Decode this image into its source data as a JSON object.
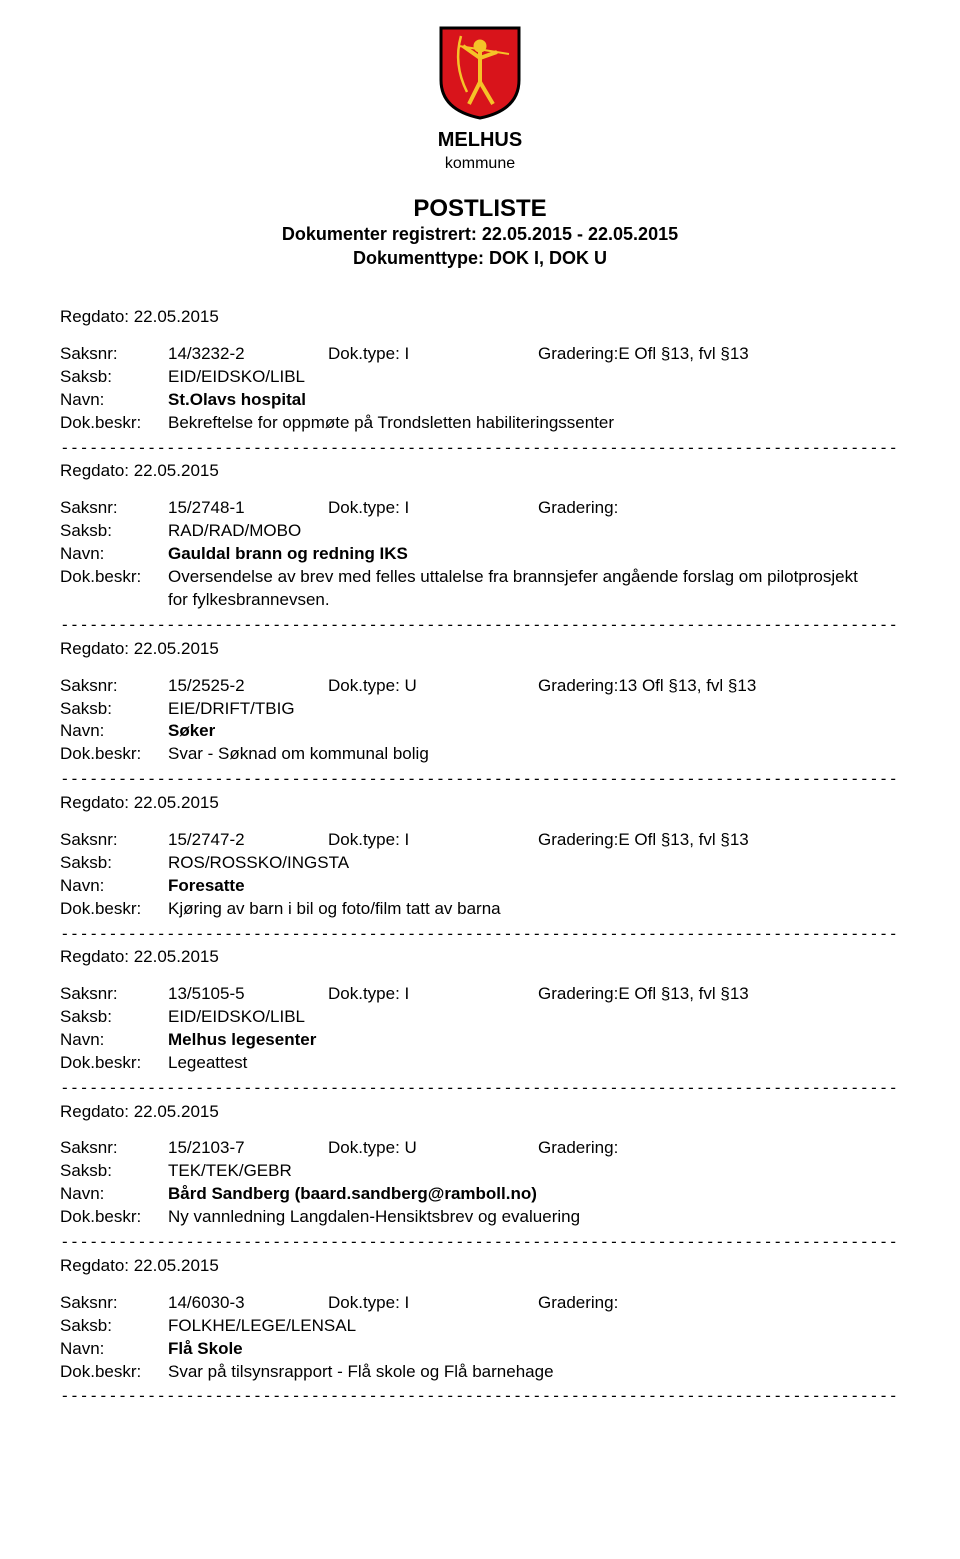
{
  "logo": {
    "name": "MELHUS",
    "sub": "kommune",
    "shield_bg": "#d8141b",
    "shield_border": "#000000",
    "archer": "#f5c328"
  },
  "header": {
    "title": "POSTLISTE",
    "line1": "Dokumenter registrert: 22.05.2015 - 22.05.2015",
    "line2": "Dokumenttype: DOK I, DOK U"
  },
  "labels": {
    "regdato": "Regdato:",
    "saksnr": "Saksnr:",
    "saksb": "Saksb:",
    "navn": "Navn:",
    "beskr": "Dok.beskr:",
    "doktype": "Dok.type:",
    "gradering": "Gradering:"
  },
  "separator": "---------------------------------------------------------------------------------------------------------------------------",
  "entries": [
    {
      "regdato": "22.05.2015",
      "saksnr": "14/3232-2",
      "doktype": "I",
      "gradering": "E Ofl §13, fvl §13",
      "saksb": "EID/EIDSKO/LIBL",
      "navn": "St.Olavs hospital",
      "beskr": "Bekreftelse for oppmøte på Trondsletten habiliteringssenter"
    },
    {
      "regdato": "22.05.2015",
      "saksnr": "15/2748-1",
      "doktype": "I",
      "gradering": "",
      "saksb": "RAD/RAD/MOBO",
      "navn": "Gauldal brann og redning IKS",
      "beskr": "Oversendelse av brev med felles uttalelse fra brannsjefer angående forslag om pilotprosjekt for fylkesbrannevsen."
    },
    {
      "regdato": "22.05.2015",
      "saksnr": "15/2525-2",
      "doktype": "U",
      "gradering": "13 Ofl §13, fvl §13",
      "saksb": "EIE/DRIFT/TBIG",
      "navn": "Søker",
      "beskr": "Svar - Søknad om kommunal bolig"
    },
    {
      "regdato": "22.05.2015",
      "saksnr": "15/2747-2",
      "doktype": "I",
      "gradering": "E Ofl §13, fvl §13",
      "saksb": "ROS/ROSSKO/INGSTA",
      "navn": "Foresatte",
      "beskr": "Kjøring av barn i bil og foto/film tatt av barna"
    },
    {
      "regdato": "22.05.2015",
      "saksnr": "13/5105-5",
      "doktype": "I",
      "gradering": "E Ofl §13, fvl §13",
      "saksb": "EID/EIDSKO/LIBL",
      "navn": "Melhus legesenter",
      "beskr": "Legeattest"
    },
    {
      "regdato": "22.05.2015",
      "saksnr": "15/2103-7",
      "doktype": "U",
      "gradering": "",
      "saksb": "TEK/TEK/GEBR",
      "navn": "Bård Sandberg (baard.sandberg@ramboll.no)",
      "beskr": "Ny vannledning Langdalen-Hensiktsbrev og evaluering"
    },
    {
      "regdato": "22.05.2015",
      "saksnr": "14/6030-3",
      "doktype": "I",
      "gradering": "",
      "saksb": "FOLKHE/LEGE/LENSAL",
      "navn": "Flå Skole",
      "beskr": "Svar på tilsynsrapport - Flå skole og Flå barnehage"
    }
  ]
}
